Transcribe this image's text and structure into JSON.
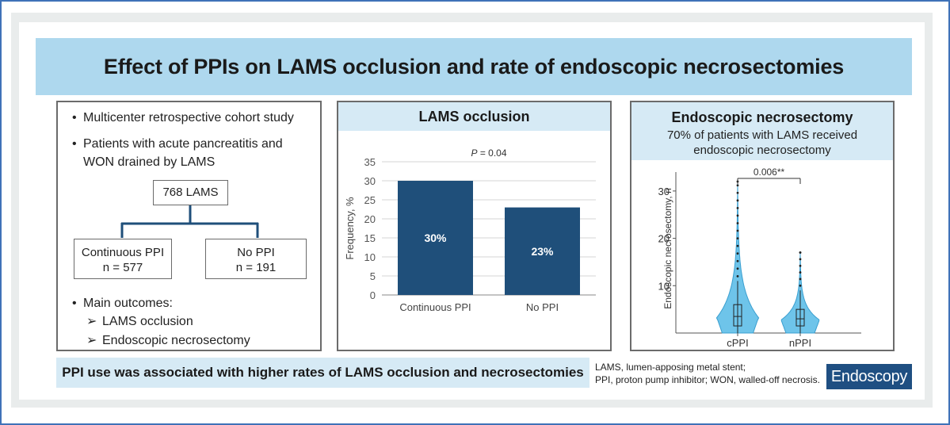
{
  "title": "Effect of PPIs on LAMS occlusion and rate of endoscopic necrosectomies",
  "study": {
    "bullets": [
      "Multicenter retrospective cohort study",
      "Patients with acute pancreatitis and WON drained by LAMS"
    ],
    "flow": {
      "total": "768 LAMS",
      "left_line1": "Continuous PPI",
      "left_line2": "n = 577",
      "right_line1": "No PPI",
      "right_line2": "n = 191"
    },
    "outcomes_label": "Main outcomes:",
    "outcomes": [
      "LAMS occlusion",
      "Endoscopic necrosectomy"
    ]
  },
  "chart_data": [
    {
      "type": "bar",
      "title": "LAMS occlusion",
      "annotation": "P = 0.04",
      "categories": [
        "Continuous PPI",
        "No PPI"
      ],
      "values": [
        30,
        23
      ],
      "data_labels": [
        "30%",
        "23%"
      ],
      "ylabel": "Frequency, %",
      "ylim": [
        0,
        35
      ],
      "yticks": [
        0,
        5,
        10,
        15,
        20,
        25,
        30,
        35
      ],
      "grid": true,
      "bar_color": "#1f4f7a"
    },
    {
      "type": "violin",
      "title": "Endoscopic necrosectomy",
      "subtitle_line1": "70% of patients with LAMS received",
      "subtitle_line2": "endoscopic necrosectomy",
      "categories": [
        "cPPI",
        "nPPI"
      ],
      "ylabel": "Endoscopic necrosectomy, n",
      "ylim": [
        0,
        34
      ],
      "yticks": [
        10,
        20,
        30
      ],
      "significance": "0.006**",
      "groups": [
        {
          "name": "cPPI",
          "min": 0,
          "q1": 1.5,
          "median": 3.5,
          "q3": 6,
          "max": 32,
          "whisker_high": 11
        },
        {
          "name": "nPPI",
          "min": 0,
          "q1": 1.5,
          "median": 3,
          "q3": 5,
          "max": 17,
          "whisker_high": 9
        }
      ],
      "violin_color": "#6ec4ea"
    }
  ],
  "conclusion": "PPI use was associated with higher rates of LAMS occlusion and necrosectomies",
  "footnote_line1": "LAMS, lumen-apposing metal stent;",
  "footnote_line2": "PPI, proton pump inhibitor; WON, walled-off necrosis.",
  "journal": "Endoscopy"
}
